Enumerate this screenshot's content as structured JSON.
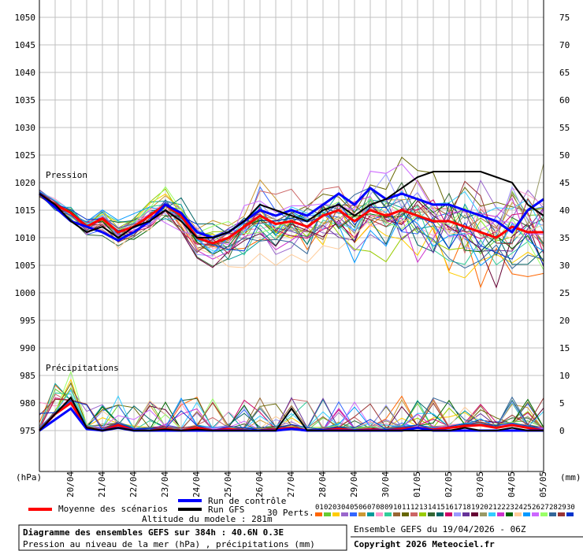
{
  "chart_data": {
    "type": "line",
    "title": "Diagramme des ensembles GEFS sur 384h : 40.6N 0.3E",
    "subtitle": "Pression au niveau de la mer (hPa) , précipitations (mm)",
    "altitude": "Altitude du modele : 281m",
    "run_info": "Ensemble GEFS du 19/04/2026 - 06Z",
    "copyright": "Copyright 2026 Meteociel.fr",
    "left_unit": "(hPa)",
    "right_unit": "(mm)",
    "pressure_label": "Pression",
    "precip_label": "Précipitations",
    "left_axis": {
      "min": 975,
      "max": 1050,
      "step": 5,
      "labels": [
        "1050",
        "1045",
        "1040",
        "1035",
        "1030",
        "1025",
        "1020",
        "1015",
        "1010",
        "1005",
        "1000",
        "995",
        "990",
        "985",
        "980",
        "975"
      ]
    },
    "right_axis": {
      "min": 0,
      "max": 75,
      "step": 5,
      "labels": [
        "75",
        "70",
        "65",
        "60",
        "55",
        "50",
        "45",
        "40",
        "35",
        "30",
        "25",
        "20",
        "15",
        "10",
        "5",
        "0"
      ]
    },
    "x_labels": [
      "20/04",
      "21/04",
      "22/04",
      "23/04",
      "24/04",
      "25/04",
      "26/04",
      "27/04",
      "28/04",
      "29/04",
      "30/04",
      "01/05",
      "02/05",
      "03/05",
      "04/05",
      "05/05"
    ],
    "legend": {
      "mean": "Moyenne des scénarios",
      "control": "Run de contrôle",
      "gfs": "Run GFS",
      "perts": "30 Perts.",
      "pert_ids": [
        "01",
        "02",
        "03",
        "04",
        "05",
        "06",
        "07",
        "08",
        "09",
        "10",
        "11",
        "12",
        "13",
        "14",
        "15",
        "16",
        "17",
        "18",
        "19",
        "20",
        "21",
        "22",
        "23",
        "24",
        "25",
        "26",
        "27",
        "28",
        "29",
        "30"
      ]
    },
    "colors": {
      "mean": "#ff0000",
      "control": "#0000ff",
      "gfs": "#000000",
      "grid": "#c0c0c0",
      "perts": [
        "#ff6600",
        "#66cc33",
        "#ffcc00",
        "#9966cc",
        "#3366ff",
        "#cc9933",
        "#009999",
        "#ff99cc",
        "#33cc99",
        "#996633",
        "#666600",
        "#cc6666",
        "#99cc00",
        "#336633",
        "#006666",
        "#cc0066",
        "#9999ff",
        "#663399",
        "#660033",
        "#999966",
        "#33ccff",
        "#cc33cc",
        "#006600",
        "#ffcc99",
        "#0099ff",
        "#cc66ff",
        "#99ff66",
        "#336699",
        "#993333",
        "#0033cc"
      ]
    },
    "series": [
      {
        "name": "Moyenne des scénarios",
        "kind": "pressure",
        "values": [
          1018,
          1016,
          1014.5,
          1012,
          1013.5,
          1011,
          1012,
          1014,
          1016,
          1014,
          1010,
          1009,
          1010,
          1012,
          1014,
          1012.5,
          1013,
          1012,
          1014,
          1015,
          1013,
          1015,
          1014,
          1015,
          1014,
          1013,
          1013,
          1012,
          1011,
          1010,
          1012,
          1011,
          1011
        ]
      },
      {
        "name": "Run de contrôle",
        "kind": "pressure",
        "values": [
          1018,
          1015.5,
          1013,
          1012,
          1011,
          1009.5,
          1011,
          1013,
          1016,
          1014.5,
          1011,
          1010,
          1011,
          1013,
          1015,
          1014,
          1015,
          1014,
          1016,
          1018,
          1016,
          1019,
          1017,
          1018,
          1017,
          1016,
          1016,
          1015,
          1014,
          1013,
          1011,
          1015,
          1017
        ]
      },
      {
        "name": "Run GFS",
        "kind": "pressure",
        "values": [
          1018,
          1016,
          1013,
          1011,
          1012,
          1010,
          1012,
          1013,
          1015,
          1013,
          1010,
          1010,
          1011,
          1013,
          1016,
          1015,
          1014,
          1013,
          1015,
          1016,
          1014,
          1016,
          1017,
          1019,
          1021,
          1022,
          1022,
          1022,
          1022,
          1021,
          1020,
          1016,
          1014
        ]
      },
      {
        "name": "Moyenne des scénarios",
        "kind": "precip",
        "values": [
          0,
          3,
          5,
          0.5,
          0,
          1,
          0,
          0,
          0.3,
          0,
          0.5,
          0,
          0.3,
          0,
          0,
          0.2,
          0.5,
          0,
          0,
          0.3,
          0,
          0.2,
          0,
          0.3,
          0.5,
          0.2,
          0.5,
          0.8,
          1,
          0.5,
          1,
          0.5,
          0
        ]
      },
      {
        "name": "Run de contrôle",
        "kind": "precip",
        "values": [
          0,
          2,
          4,
          0.3,
          0,
          0.5,
          0,
          0,
          0,
          0,
          0,
          0,
          0,
          0,
          0,
          0,
          0.3,
          0,
          0,
          0,
          0,
          0,
          0,
          0,
          0.5,
          0,
          0,
          0,
          0,
          0,
          0,
          0,
          0
        ]
      },
      {
        "name": "Run GFS",
        "kind": "precip",
        "values": [
          0,
          3,
          6,
          0.5,
          0,
          0.5,
          0,
          0,
          0.2,
          0,
          0.2,
          0,
          0,
          0,
          0,
          0,
          4,
          0,
          0,
          0,
          0,
          0,
          0,
          0,
          0,
          0,
          0,
          0.5,
          0,
          0,
          0.5,
          0,
          0
        ]
      }
    ]
  }
}
